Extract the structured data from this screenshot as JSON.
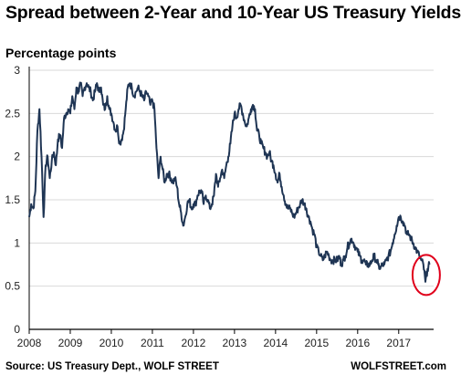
{
  "title": "Spread between 2-Year and 10-Year US Treasury Yields",
  "unit_label": "Percentage points",
  "source": "Source: US Treasury Dept., WOLF STREET",
  "brand": "WOLFSTREET.com",
  "colors": {
    "line": "#1f3554",
    "grid": "#d9d9d9",
    "axis": "#000000",
    "highlight_circle": "#e0001b"
  },
  "chart_data": {
    "type": "line",
    "title": "Spread between 2-Year and 10-Year US Treasury Yields",
    "ylabel": "Percentage points",
    "xlabel": "",
    "x_ticks": [
      "2008",
      "2009",
      "2010",
      "2011",
      "2012",
      "2013",
      "2014",
      "2015",
      "2016",
      "2017"
    ],
    "y_ticks": [
      0,
      0.5,
      1,
      1.5,
      2,
      2.5,
      3
    ],
    "xlim": [
      2008.0,
      2017.85
    ],
    "ylim": [
      0,
      3
    ],
    "grid": "horizontal",
    "legend": "none",
    "annotation": "red circle around mid-2017 low",
    "series": [
      {
        "x": [
          2008.0,
          2008.05,
          2008.1,
          2008.15,
          2008.2,
          2008.25,
          2008.3,
          2008.35,
          2008.4,
          2008.45,
          2008.5,
          2008.55,
          2008.6,
          2008.65,
          2008.7,
          2008.75,
          2008.8,
          2008.85,
          2008.9,
          2008.95,
          2009.0,
          2009.05,
          2009.1,
          2009.15,
          2009.2,
          2009.25,
          2009.3,
          2009.35,
          2009.4,
          2009.45,
          2009.5,
          2009.55,
          2009.6,
          2009.65,
          2009.7,
          2009.75,
          2009.8,
          2009.85,
          2009.9,
          2009.95,
          2010.0,
          2010.05,
          2010.1,
          2010.15,
          2010.2,
          2010.25,
          2010.3,
          2010.35,
          2010.4,
          2010.45,
          2010.5,
          2010.55,
          2010.6,
          2010.65,
          2010.7,
          2010.75,
          2010.8,
          2010.85,
          2010.9,
          2010.95,
          2011.0,
          2011.05,
          2011.1,
          2011.15,
          2011.2,
          2011.25,
          2011.3,
          2011.35,
          2011.4,
          2011.45,
          2011.5,
          2011.55,
          2011.6,
          2011.65,
          2011.7,
          2011.75,
          2011.8,
          2011.85,
          2011.9,
          2011.95,
          2012.0,
          2012.05,
          2012.1,
          2012.15,
          2012.2,
          2012.25,
          2012.3,
          2012.35,
          2012.4,
          2012.45,
          2012.5,
          2012.55,
          2012.6,
          2012.65,
          2012.7,
          2012.75,
          2012.8,
          2012.85,
          2012.9,
          2012.95,
          2013.0,
          2013.05,
          2013.1,
          2013.15,
          2013.2,
          2013.25,
          2013.3,
          2013.35,
          2013.4,
          2013.45,
          2013.5,
          2013.55,
          2013.6,
          2013.65,
          2013.7,
          2013.75,
          2013.8,
          2013.85,
          2013.9,
          2013.95,
          2014.0,
          2014.05,
          2014.1,
          2014.15,
          2014.2,
          2014.25,
          2014.3,
          2014.35,
          2014.4,
          2014.45,
          2014.5,
          2014.55,
          2014.6,
          2014.65,
          2014.7,
          2014.75,
          2014.8,
          2014.85,
          2014.9,
          2014.95,
          2015.0,
          2015.05,
          2015.1,
          2015.15,
          2015.2,
          2015.25,
          2015.3,
          2015.35,
          2015.4,
          2015.45,
          2015.5,
          2015.55,
          2015.6,
          2015.65,
          2015.7,
          2015.75,
          2015.8,
          2015.85,
          2015.9,
          2015.95,
          2016.0,
          2016.05,
          2016.1,
          2016.15,
          2016.2,
          2016.25,
          2016.3,
          2016.35,
          2016.4,
          2016.45,
          2016.5,
          2016.55,
          2016.6,
          2016.65,
          2016.7,
          2016.75,
          2016.8,
          2016.85,
          2016.9,
          2016.95,
          2017.0,
          2017.05,
          2017.1,
          2017.15,
          2017.2,
          2017.25,
          2017.3,
          2017.35,
          2017.4,
          2017.45,
          2017.5,
          2017.55,
          2017.6,
          2017.65,
          2017.7,
          2017.75
        ],
        "values": [
          1.3,
          1.45,
          1.4,
          1.6,
          2.3,
          2.55,
          2.0,
          1.3,
          1.9,
          2.0,
          1.75,
          1.95,
          2.05,
          1.9,
          2.2,
          2.25,
          2.1,
          2.45,
          2.5,
          2.55,
          2.5,
          2.7,
          2.55,
          2.8,
          2.75,
          2.85,
          2.7,
          2.8,
          2.85,
          2.8,
          2.75,
          2.65,
          2.75,
          2.85,
          2.75,
          2.8,
          2.6,
          2.55,
          2.7,
          2.55,
          2.5,
          2.4,
          2.3,
          2.35,
          2.15,
          2.2,
          2.3,
          2.55,
          2.8,
          2.85,
          2.8,
          2.7,
          2.75,
          2.8,
          2.75,
          2.7,
          2.65,
          2.75,
          2.7,
          2.6,
          2.65,
          2.55,
          2.1,
          1.75,
          2.0,
          1.85,
          1.7,
          1.8,
          1.8,
          1.75,
          1.7,
          1.75,
          1.65,
          1.45,
          1.35,
          1.2,
          1.3,
          1.45,
          1.5,
          1.4,
          1.45,
          1.45,
          1.55,
          1.6,
          1.6,
          1.45,
          1.55,
          1.5,
          1.4,
          1.45,
          1.55,
          1.8,
          1.65,
          1.75,
          1.85,
          1.75,
          1.9,
          2.0,
          2.15,
          2.35,
          2.5,
          2.45,
          2.55,
          2.6,
          2.5,
          2.4,
          2.35,
          2.45,
          2.55,
          2.6,
          2.55,
          2.3,
          2.25,
          2.15,
          2.1,
          2.05,
          2.0,
          2.05,
          1.95,
          1.9,
          1.8,
          1.7,
          1.8,
          1.65,
          1.55,
          1.45,
          1.4,
          1.4,
          1.35,
          1.3,
          1.35,
          1.4,
          1.45,
          1.5,
          1.45,
          1.4,
          1.3,
          1.25,
          1.15,
          1.1,
          0.95,
          0.9,
          0.85,
          0.8,
          0.85,
          0.9,
          0.85,
          0.8,
          0.8,
          0.8,
          0.8,
          0.85,
          0.75,
          0.8,
          0.85,
          0.95,
          1.0,
          1.05,
          1.0,
          0.95,
          0.9,
          0.85,
          0.8,
          0.8,
          0.75,
          0.75,
          0.75,
          0.8,
          0.85,
          0.8,
          0.75,
          0.7,
          0.75,
          0.75,
          0.8,
          0.85,
          0.9,
          1.0,
          1.1,
          1.2,
          1.3,
          1.3,
          1.25,
          1.2,
          1.1,
          1.1,
          1.05,
          1.0,
          0.95,
          0.9,
          0.85,
          0.8,
          0.75,
          0.55,
          0.7,
          0.75
        ]
      }
    ]
  }
}
